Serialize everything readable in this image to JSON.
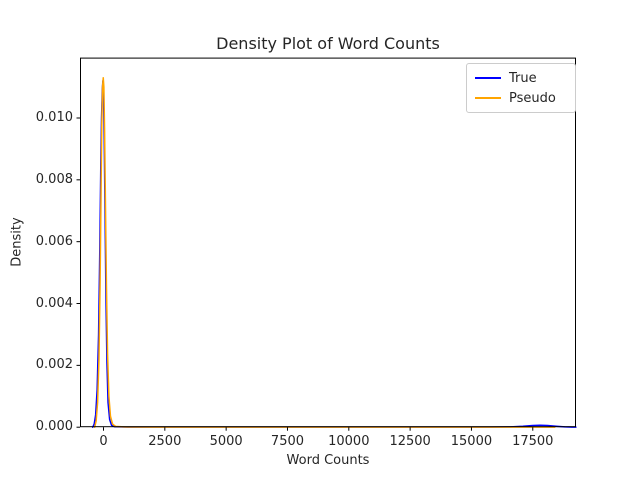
{
  "figure": {
    "background_color": "#ffffff",
    "title": "Density Plot of Word Counts",
    "xlabel": "Word Counts",
    "ylabel": "Density",
    "spine_color": "#000000",
    "text_color": "#262626"
  },
  "legend": {
    "position": "upper right",
    "border_color": "#cccccc",
    "entries": [
      {
        "label": "True",
        "color": "#0000ff"
      },
      {
        "label": "Pseudo",
        "color": "#ffa500"
      }
    ]
  },
  "chart_data": {
    "type": "line",
    "subtype": "kde-density",
    "title": "Density Plot of Word Counts",
    "xlabel": "Word Counts",
    "ylabel": "Density",
    "xlim": [
      -958,
      19262
    ],
    "ylim": [
      0,
      0.011953
    ],
    "x_ticks": [
      0,
      2500,
      5000,
      7500,
      10000,
      12500,
      15000,
      17500
    ],
    "y_ticks": [
      0.0,
      0.002,
      0.004,
      0.006,
      0.008,
      0.01
    ],
    "y_tick_decimals": 3,
    "grid": false,
    "legend_position": "upper right",
    "line_width": 1.5,
    "series": [
      {
        "name": "True",
        "color": "#0000ff",
        "points": [
          [
            -440,
            0.0
          ],
          [
            -380,
            0.0001
          ],
          [
            -320,
            0.0004
          ],
          [
            -260,
            0.0012
          ],
          [
            -200,
            0.003
          ],
          [
            -150,
            0.0058
          ],
          [
            -110,
            0.0085
          ],
          [
            -80,
            0.01
          ],
          [
            -50,
            0.0109
          ],
          [
            -25,
            0.0112
          ],
          [
            0,
            0.0108
          ],
          [
            30,
            0.0093
          ],
          [
            65,
            0.0068
          ],
          [
            100,
            0.0042
          ],
          [
            140,
            0.0021
          ],
          [
            185,
            0.0008
          ],
          [
            250,
            0.00025
          ],
          [
            330,
            6e-05
          ],
          [
            450,
            1.5e-05
          ],
          [
            800,
            5e-06
          ],
          [
            1500,
            3e-06
          ],
          [
            4000,
            2e-06
          ],
          [
            8000,
            2e-06
          ],
          [
            12000,
            2e-06
          ],
          [
            15800,
            3e-06
          ],
          [
            16600,
            1e-05
          ],
          [
            17100,
            3e-05
          ],
          [
            17500,
            5.5e-05
          ],
          [
            17800,
            6.2e-05
          ],
          [
            18100,
            5.5e-05
          ],
          [
            18450,
            3e-05
          ],
          [
            18800,
            1e-05
          ],
          [
            19100,
            3e-06
          ],
          [
            19260,
            1e-06
          ]
        ]
      },
      {
        "name": "Pseudo",
        "color": "#ffa500",
        "points": [
          [
            -360,
            0.0
          ],
          [
            -300,
            0.0002
          ],
          [
            -240,
            0.0008
          ],
          [
            -185,
            0.0022
          ],
          [
            -140,
            0.0046
          ],
          [
            -100,
            0.0076
          ],
          [
            -70,
            0.0098
          ],
          [
            -40,
            0.011
          ],
          [
            -10,
            0.0113
          ],
          [
            15,
            0.011
          ],
          [
            45,
            0.0096
          ],
          [
            80,
            0.0072
          ],
          [
            120,
            0.0046
          ],
          [
            165,
            0.0024
          ],
          [
            220,
            0.001
          ],
          [
            285,
            0.00035
          ],
          [
            370,
            0.0001
          ],
          [
            500,
            2.5e-05
          ],
          [
            900,
            8e-06
          ],
          [
            2000,
            4e-06
          ],
          [
            6000,
            3e-06
          ],
          [
            12000,
            3e-06
          ],
          [
            17500,
            3e-06
          ],
          [
            18400,
            1e-06
          ]
        ]
      }
    ]
  }
}
